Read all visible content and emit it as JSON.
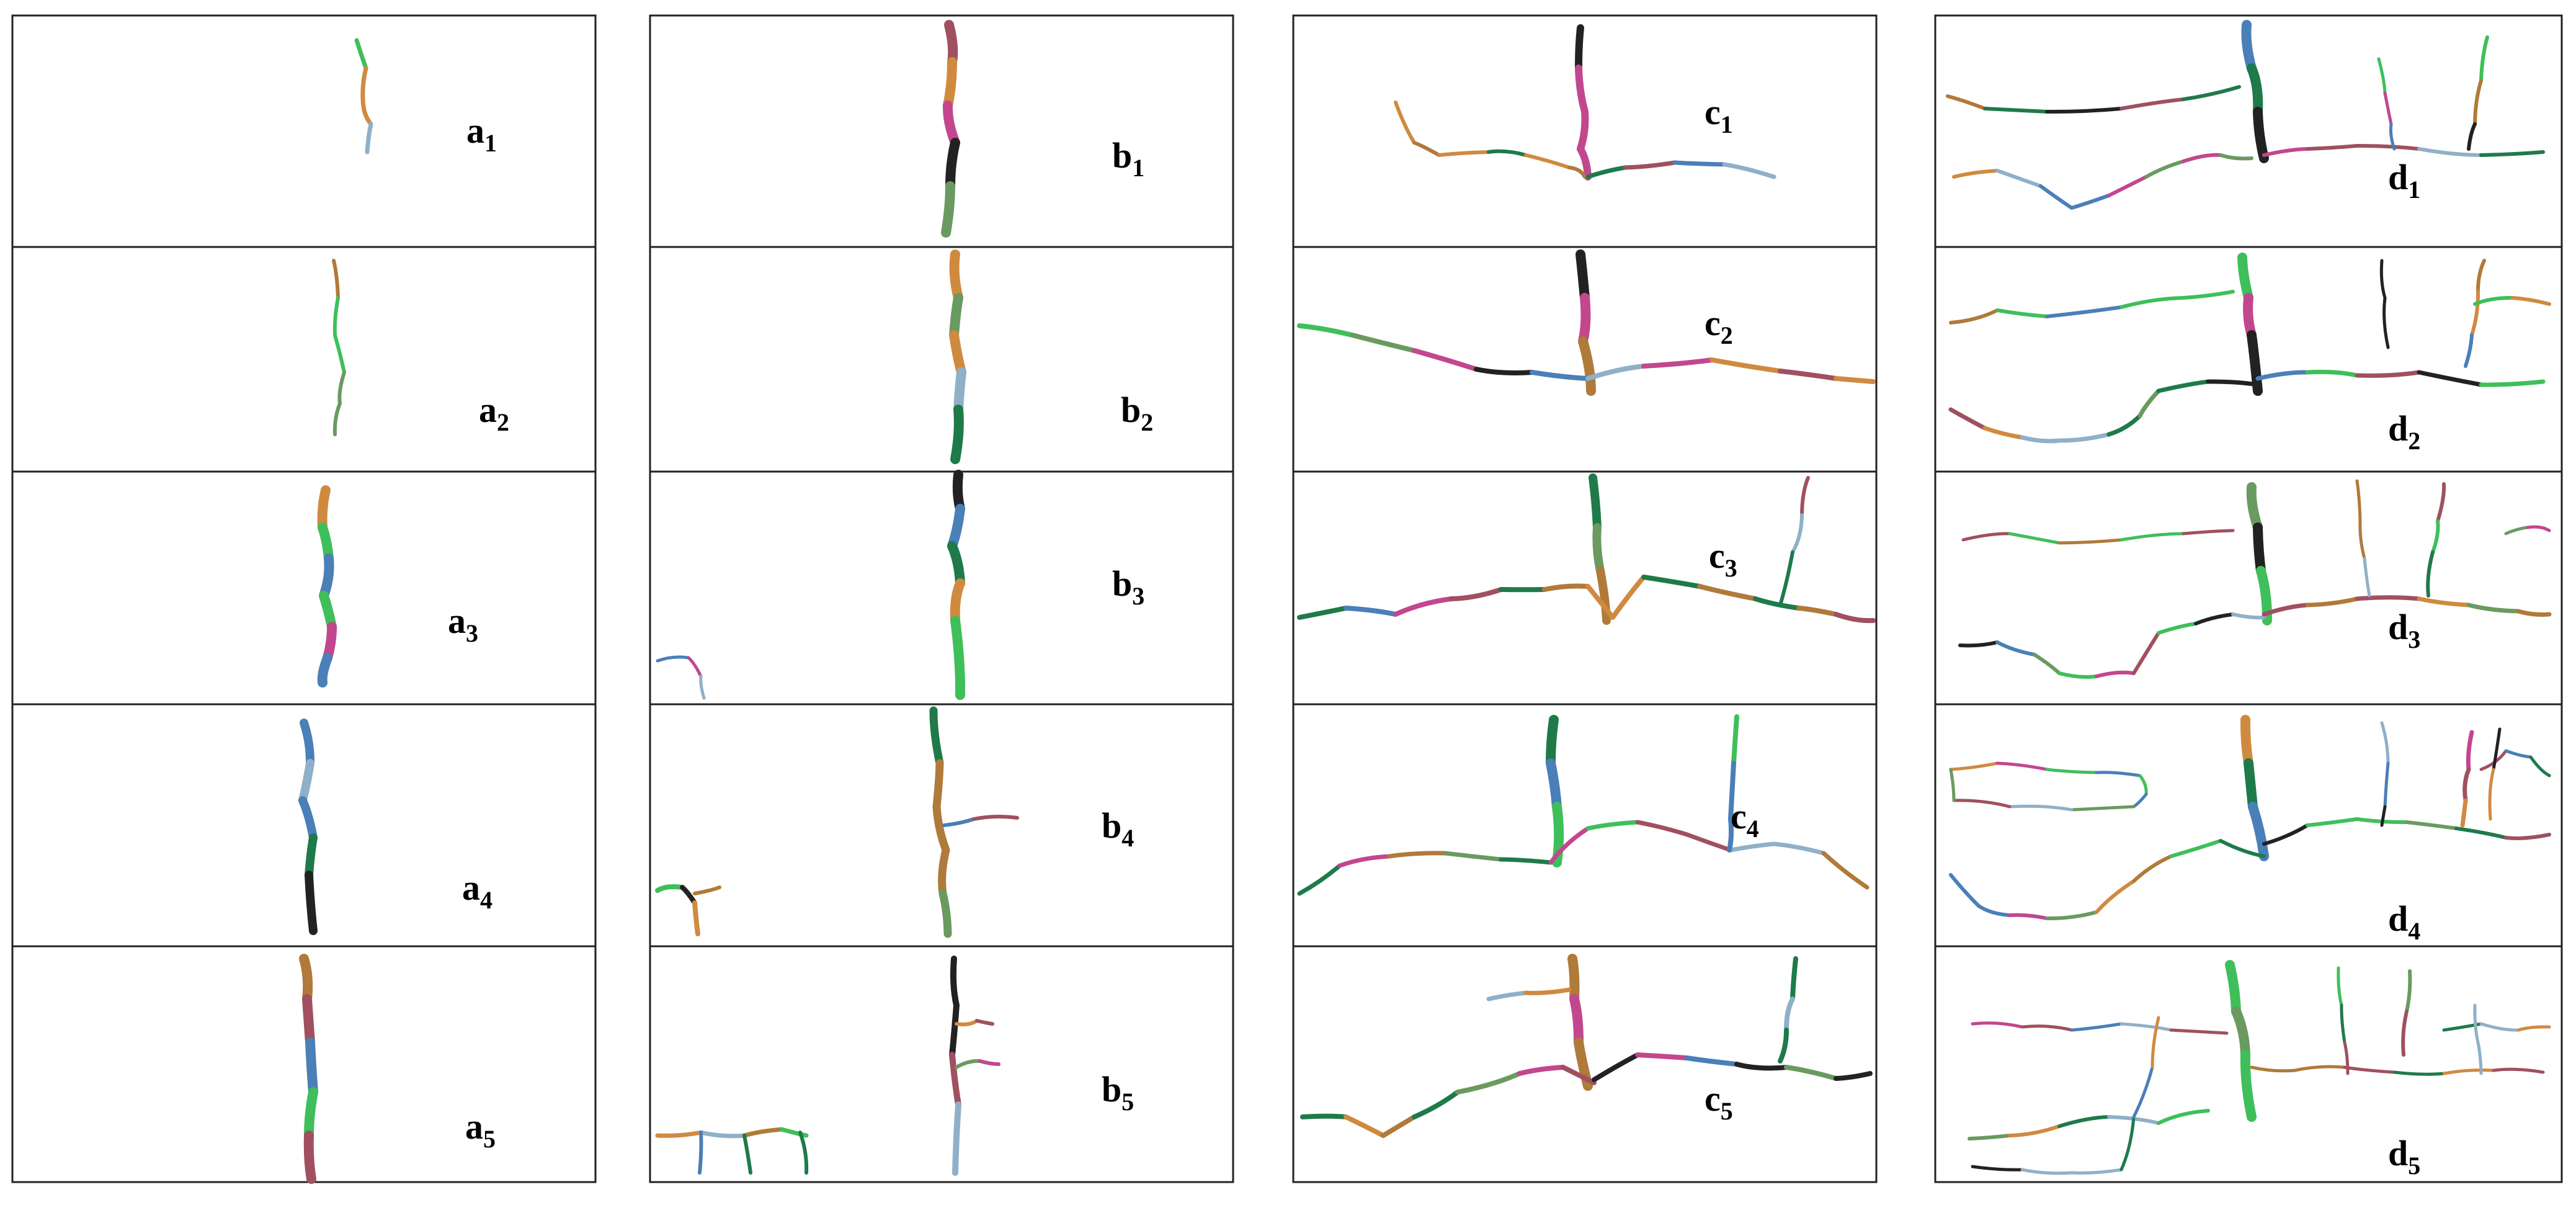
{
  "figure": {
    "columns": [
      {
        "id": "a",
        "panels": [
          {
            "letter": "a",
            "index": "1"
          },
          {
            "letter": "a",
            "index": "2"
          },
          {
            "letter": "a",
            "index": "3"
          },
          {
            "letter": "a",
            "index": "4"
          },
          {
            "letter": "a",
            "index": "5"
          }
        ]
      },
      {
        "id": "b",
        "panels": [
          {
            "letter": "b",
            "index": "1"
          },
          {
            "letter": "b",
            "index": "2"
          },
          {
            "letter": "b",
            "index": "3"
          },
          {
            "letter": "b",
            "index": "4"
          },
          {
            "letter": "b",
            "index": "5"
          }
        ]
      },
      {
        "id": "c",
        "panels": [
          {
            "letter": "c",
            "index": "1"
          },
          {
            "letter": "c",
            "index": "2"
          },
          {
            "letter": "c",
            "index": "3"
          },
          {
            "letter": "c",
            "index": "4"
          },
          {
            "letter": "c",
            "index": "5"
          }
        ]
      },
      {
        "id": "d",
        "panels": [
          {
            "letter": "d",
            "index": "1"
          },
          {
            "letter": "d",
            "index": "2"
          },
          {
            "letter": "d",
            "index": "3"
          },
          {
            "letter": "d",
            "index": "4"
          },
          {
            "letter": "d",
            "index": "5"
          }
        ]
      }
    ],
    "segment_colors": [
      "#1f7a4a",
      "#3fbf5a",
      "#4a7fb8",
      "#c2478f",
      "#b07a3a",
      "#d08a40",
      "#222222",
      "#8fb0c8",
      "#a05060",
      "#6a9a60"
    ]
  }
}
